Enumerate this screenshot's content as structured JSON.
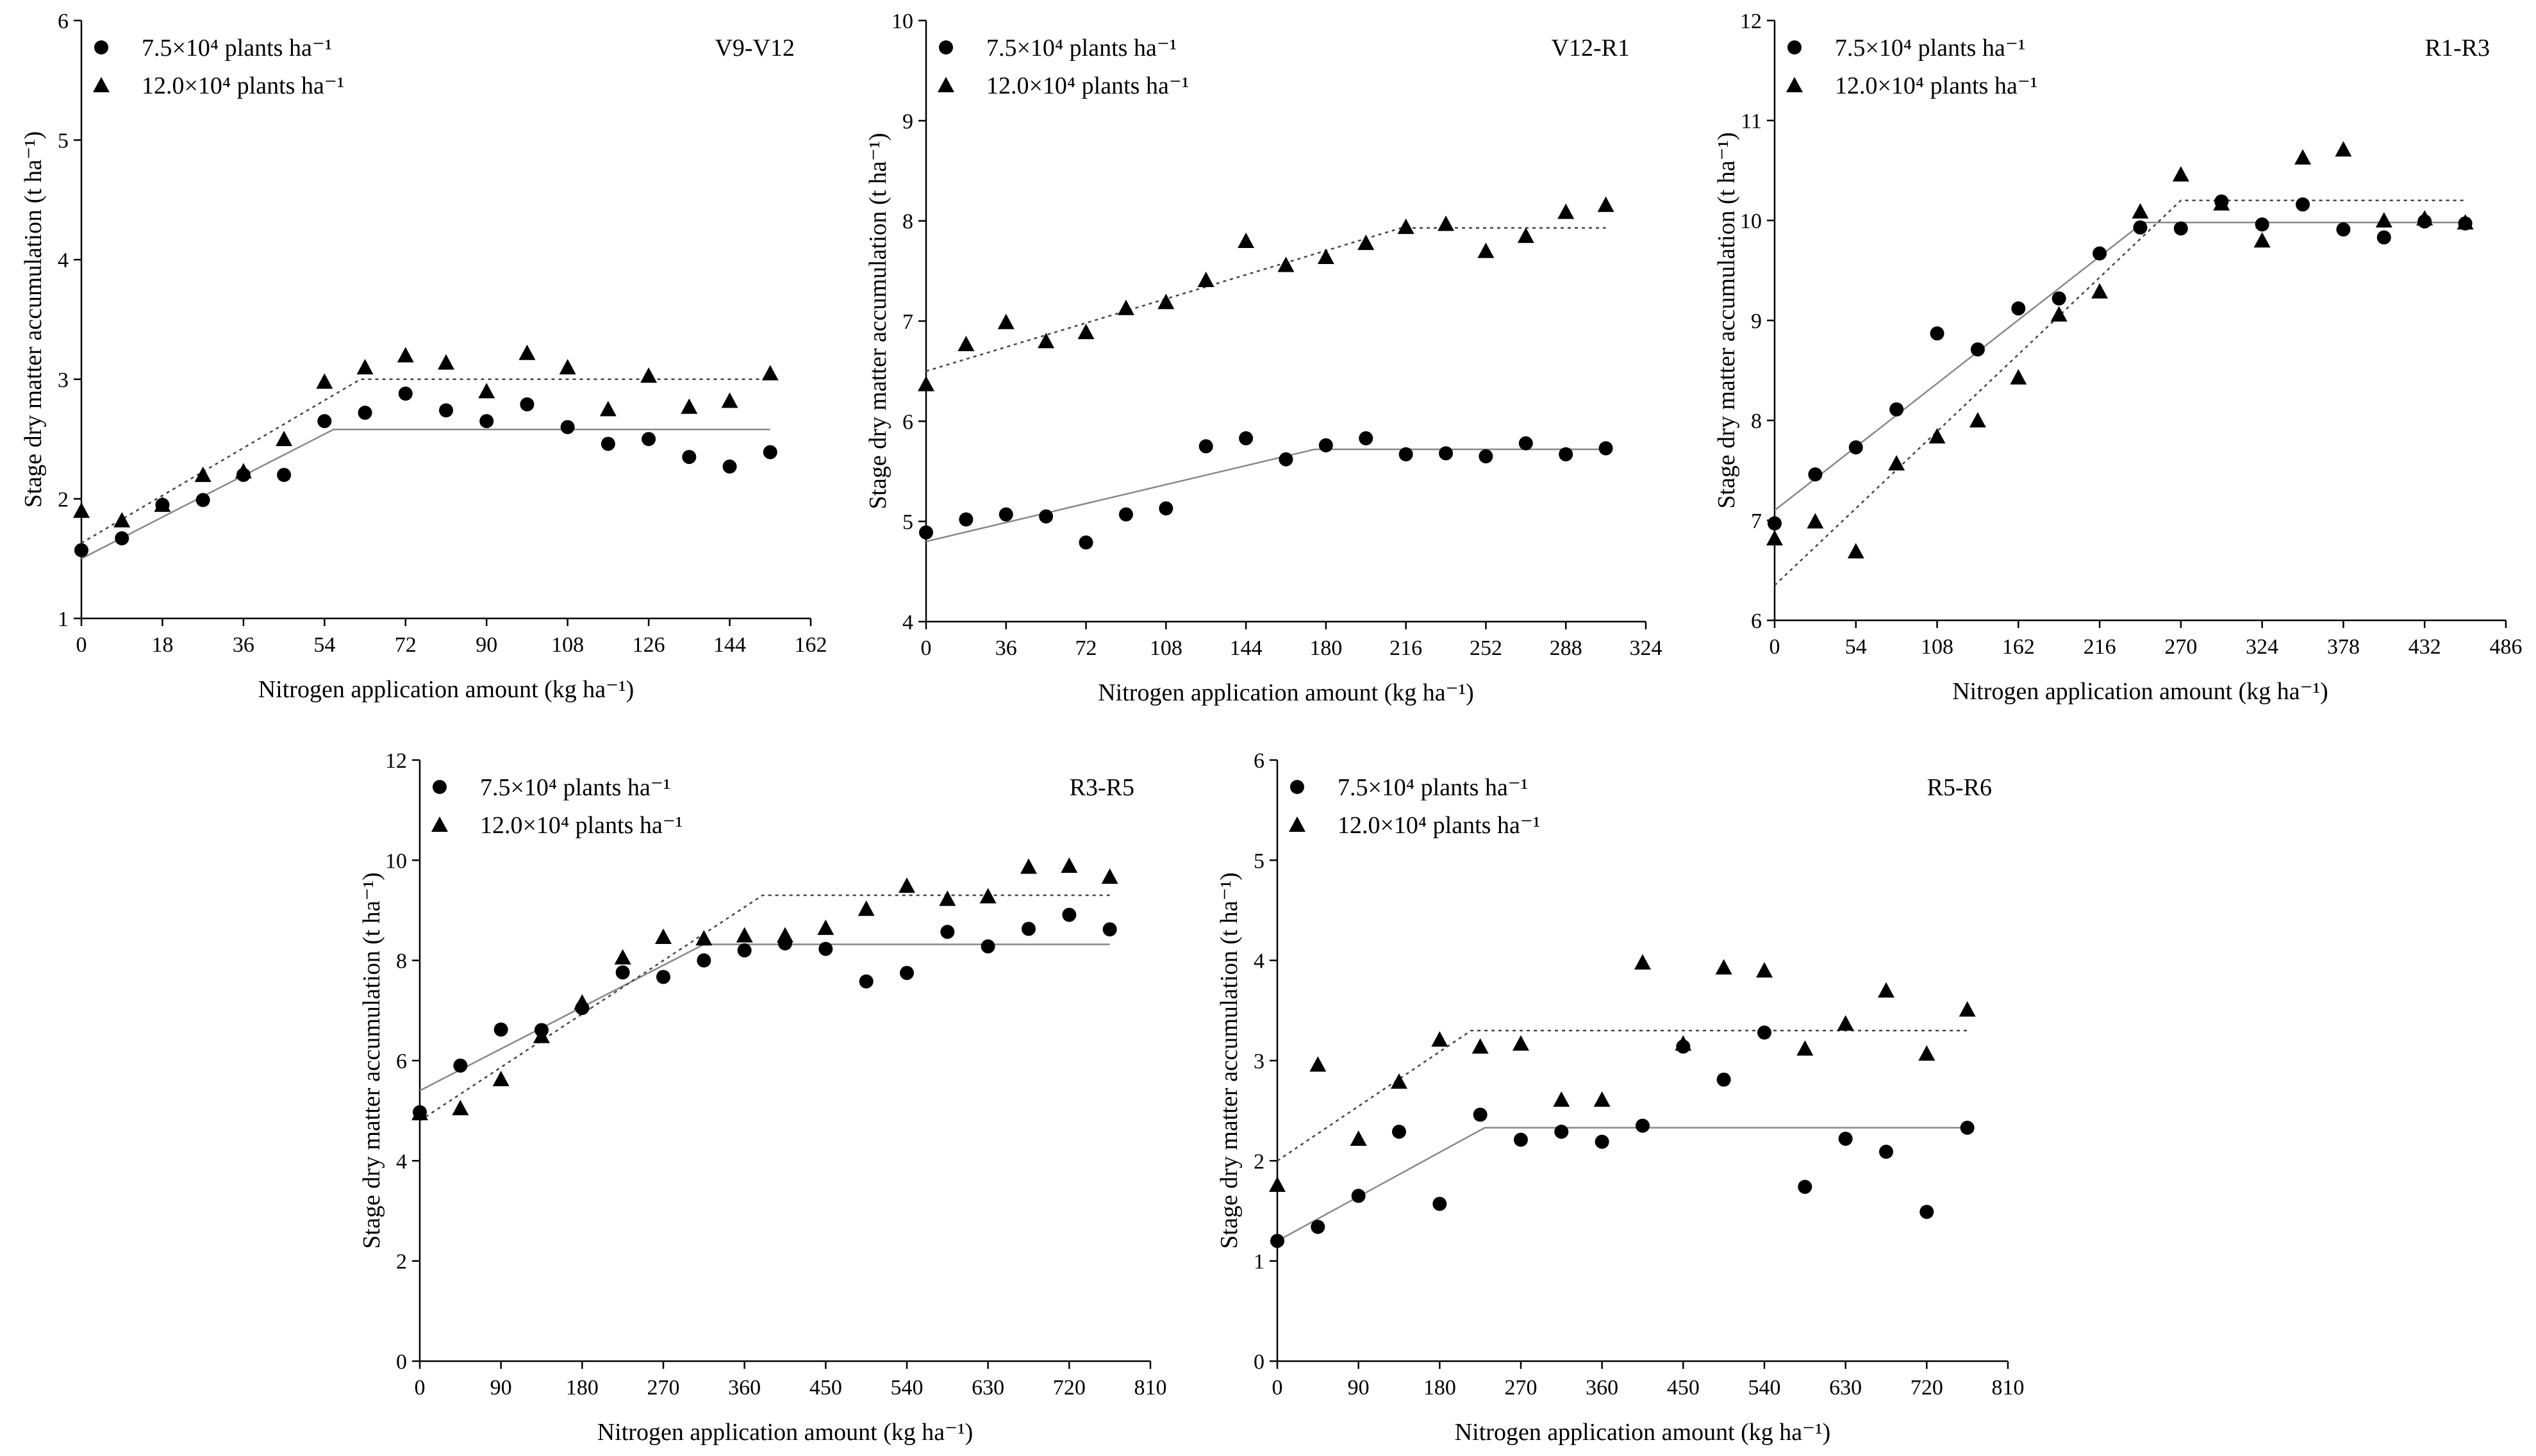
{
  "figure": {
    "xlabel": "Nitrogen application amount (kg ha⁻¹)",
    "ylabel": "Stage dry matter accumulation (t ha⁻¹)",
    "legend": [
      "7.5×10⁴ plants ha⁻¹",
      "12.0×10⁴ plants ha⁻¹"
    ]
  },
  "chart_data": [
    {
      "type": "scatter",
      "panel_label": "V9-V12",
      "xlabel": "Nitrogen application amount (kg ha⁻¹)",
      "ylabel": "Stage dry matter accumulation (t ha⁻¹)",
      "xlim": [
        0,
        162
      ],
      "ylim": [
        1,
        6
      ],
      "xticks": [
        0,
        18,
        36,
        54,
        72,
        90,
        108,
        126,
        144,
        162
      ],
      "yticks": [
        1,
        2,
        3,
        4,
        5,
        6
      ],
      "legend_position": "top-left",
      "series": [
        {
          "name": "7.5×10⁴ plants ha⁻¹",
          "marker": "circle",
          "fit_style": "solid",
          "x": [
            0,
            9,
            18,
            27,
            36,
            45,
            54,
            63,
            72,
            81,
            90,
            99,
            108,
            117,
            126,
            135,
            144,
            153
          ],
          "y": [
            1.57,
            1.67,
            1.95,
            1.99,
            2.2,
            2.2,
            2.65,
            2.72,
            2.88,
            2.74,
            2.65,
            2.79,
            2.6,
            2.46,
            2.5,
            2.35,
            2.27,
            2.39
          ],
          "fit": [
            [
              0,
              1.5
            ],
            [
              56,
              2.58
            ],
            [
              153,
              2.58
            ]
          ]
        },
        {
          "name": "12.0×10⁴ plants ha⁻¹",
          "marker": "triangle",
          "fit_style": "dotted",
          "x": [
            0,
            9,
            18,
            27,
            36,
            45,
            54,
            63,
            72,
            81,
            90,
            99,
            108,
            117,
            126,
            135,
            144,
            153
          ],
          "y": [
            1.9,
            1.82,
            1.95,
            2.2,
            2.23,
            2.5,
            2.98,
            3.1,
            3.2,
            3.14,
            2.9,
            3.22,
            3.1,
            2.75,
            3.03,
            2.77,
            2.82,
            3.05
          ],
          "fit": [
            [
              0,
              1.63
            ],
            [
              62,
              3.0
            ],
            [
              153,
              3.0
            ]
          ]
        }
      ]
    },
    {
      "type": "scatter",
      "panel_label": "V12-R1",
      "xlabel": "Nitrogen application amount (kg ha⁻¹)",
      "ylabel": "Stage dry matter accumulation (t ha⁻¹)",
      "xlim": [
        0,
        324
      ],
      "ylim": [
        4,
        10
      ],
      "xticks": [
        0,
        36,
        72,
        108,
        144,
        180,
        216,
        252,
        288,
        324
      ],
      "yticks": [
        4,
        5,
        6,
        7,
        8,
        9,
        10
      ],
      "legend_position": "top-left",
      "series": [
        {
          "name": "7.5×10⁴ plants ha⁻¹",
          "marker": "circle",
          "fit_style": "solid",
          "x": [
            0,
            18,
            36,
            54,
            72,
            90,
            108,
            126,
            144,
            162,
            180,
            198,
            216,
            234,
            252,
            270,
            288,
            306
          ],
          "y": [
            4.89,
            5.02,
            5.07,
            5.05,
            4.79,
            5.07,
            5.13,
            5.75,
            5.83,
            5.62,
            5.76,
            5.83,
            5.67,
            5.68,
            5.65,
            5.78,
            5.67,
            5.73
          ],
          "fit": [
            [
              0,
              4.8
            ],
            [
              175,
              5.72
            ],
            [
              306,
              5.72
            ]
          ]
        },
        {
          "name": "12.0×10⁴ plants ha⁻¹",
          "marker": "triangle",
          "fit_style": "dotted",
          "x": [
            0,
            18,
            36,
            54,
            72,
            90,
            108,
            126,
            144,
            162,
            180,
            198,
            216,
            234,
            252,
            270,
            288,
            306
          ],
          "y": [
            6.37,
            6.77,
            6.99,
            6.8,
            6.89,
            7.13,
            7.19,
            7.41,
            7.8,
            7.56,
            7.64,
            7.78,
            7.94,
            7.97,
            7.7,
            7.85,
            8.09,
            8.16
          ],
          "fit": [
            [
              0,
              6.5
            ],
            [
              214,
              7.93
            ],
            [
              306,
              7.93
            ]
          ]
        }
      ]
    },
    {
      "type": "scatter",
      "panel_label": "R1-R3",
      "xlabel": "Nitrogen application amount (kg ha⁻¹)",
      "ylabel": "Stage dry matter accumulation (t ha⁻¹)",
      "xlim": [
        0,
        486
      ],
      "ylim": [
        6,
        12
      ],
      "xticks": [
        0,
        54,
        108,
        162,
        216,
        270,
        324,
        378,
        432,
        486
      ],
      "yticks": [
        6,
        7,
        8,
        9,
        10,
        11,
        12
      ],
      "legend_position": "top-left",
      "series": [
        {
          "name": "7.5×10⁴ plants ha⁻¹",
          "marker": "circle",
          "fit_style": "solid",
          "x": [
            0,
            27,
            54,
            81,
            108,
            135,
            162,
            189,
            216,
            243,
            270,
            297,
            324,
            351,
            378,
            405,
            432,
            459
          ],
          "y": [
            6.97,
            7.46,
            7.73,
            8.11,
            8.87,
            8.71,
            9.12,
            9.22,
            9.67,
            9.93,
            9.92,
            10.19,
            9.96,
            10.16,
            9.91,
            9.83,
            9.99,
            9.97
          ],
          "fit": [
            [
              0,
              7.1
            ],
            [
              245,
              9.98
            ],
            [
              459,
              9.98
            ]
          ]
        },
        {
          "name": "12.0×10⁴ plants ha⁻¹",
          "marker": "triangle",
          "fit_style": "dotted",
          "x": [
            0,
            27,
            54,
            81,
            108,
            135,
            162,
            189,
            216,
            243,
            270,
            297,
            324,
            351,
            378,
            405,
            432,
            459
          ],
          "y": [
            6.82,
            6.99,
            6.69,
            7.57,
            7.84,
            8.0,
            8.43,
            9.06,
            9.29,
            10.09,
            10.46,
            10.17,
            9.8,
            10.63,
            10.71,
            10.0,
            10.02,
            9.98
          ],
          "fit": [
            [
              0,
              6.35
            ],
            [
              270,
              10.2
            ],
            [
              459,
              10.2
            ]
          ]
        }
      ]
    },
    {
      "type": "scatter",
      "panel_label": "R3-R5",
      "xlabel": "Nitrogen application amount (kg ha⁻¹)",
      "ylabel": "Stage dry matter accumulation (t ha⁻¹)",
      "xlim": [
        0,
        810
      ],
      "ylim": [
        0,
        12
      ],
      "xticks": [
        0,
        90,
        180,
        270,
        360,
        450,
        540,
        630,
        720,
        810
      ],
      "yticks": [
        0,
        2,
        4,
        6,
        8,
        10,
        12
      ],
      "legend_position": "top-left",
      "series": [
        {
          "name": "7.5×10⁴ plants ha⁻¹",
          "marker": "circle",
          "fit_style": "solid",
          "x": [
            0,
            45,
            90,
            135,
            180,
            225,
            270,
            315,
            360,
            405,
            450,
            495,
            540,
            585,
            630,
            675,
            720,
            765
          ],
          "y": [
            4.97,
            5.9,
            6.62,
            6.61,
            7.05,
            7.76,
            7.67,
            8.0,
            8.2,
            8.34,
            8.23,
            7.58,
            7.75,
            8.57,
            8.28,
            8.63,
            8.91,
            8.62
          ],
          "fit": [
            [
              0,
              5.4
            ],
            [
              315,
              8.32
            ],
            [
              765,
              8.32
            ]
          ]
        },
        {
          "name": "12.0×10⁴ plants ha⁻¹",
          "marker": "triangle",
          "fit_style": "dotted",
          "x": [
            0,
            45,
            90,
            135,
            180,
            225,
            270,
            315,
            360,
            405,
            450,
            495,
            540,
            585,
            630,
            675,
            720,
            765
          ],
          "y": [
            4.95,
            5.05,
            5.63,
            6.49,
            7.16,
            8.06,
            8.47,
            8.44,
            8.5,
            8.5,
            8.65,
            9.03,
            9.49,
            9.23,
            9.28,
            9.87,
            9.89,
            9.67
          ],
          "fit": [
            [
              0,
              4.8
            ],
            [
              380,
              9.3
            ],
            [
              765,
              9.3
            ]
          ]
        }
      ]
    },
    {
      "type": "scatter",
      "panel_label": "R5-R6",
      "xlabel": "Nitrogen application amount (kg ha⁻¹)",
      "ylabel": "Stage dry matter accumulation (t ha⁻¹)",
      "xlim": [
        0,
        810
      ],
      "ylim": [
        0,
        6
      ],
      "xticks": [
        0,
        90,
        180,
        270,
        360,
        450,
        540,
        630,
        720,
        810
      ],
      "yticks": [
        0,
        1,
        2,
        3,
        4,
        5,
        6
      ],
      "legend_position": "top-left",
      "series": [
        {
          "name": "7.5×10⁴ plants ha⁻¹",
          "marker": "circle",
          "fit_style": "solid",
          "x": [
            0,
            45,
            90,
            135,
            180,
            225,
            270,
            315,
            360,
            405,
            450,
            495,
            540,
            585,
            630,
            675,
            720,
            765
          ],
          "y": [
            1.2,
            1.34,
            1.65,
            2.29,
            1.57,
            2.46,
            2.21,
            2.29,
            2.19,
            2.35,
            3.14,
            2.81,
            3.28,
            1.74,
            2.22,
            2.09,
            1.49,
            2.33
          ],
          "fit": [
            [
              0,
              1.2
            ],
            [
              230,
              2.33
            ],
            [
              765,
              2.33
            ]
          ]
        },
        {
          "name": "12.0×10⁴ plants ha⁻¹",
          "marker": "triangle",
          "fit_style": "dotted",
          "x": [
            0,
            45,
            90,
            135,
            180,
            225,
            270,
            315,
            360,
            405,
            450,
            495,
            540,
            585,
            630,
            675,
            720,
            765
          ],
          "y": [
            1.76,
            2.96,
            2.22,
            2.79,
            3.21,
            3.14,
            3.17,
            2.61,
            2.61,
            3.98,
            3.17,
            3.93,
            3.9,
            3.12,
            3.37,
            3.7,
            3.07,
            3.51
          ],
          "fit": [
            [
              0,
              2.0
            ],
            [
              215,
              3.3
            ],
            [
              765,
              3.3
            ]
          ]
        }
      ]
    }
  ]
}
